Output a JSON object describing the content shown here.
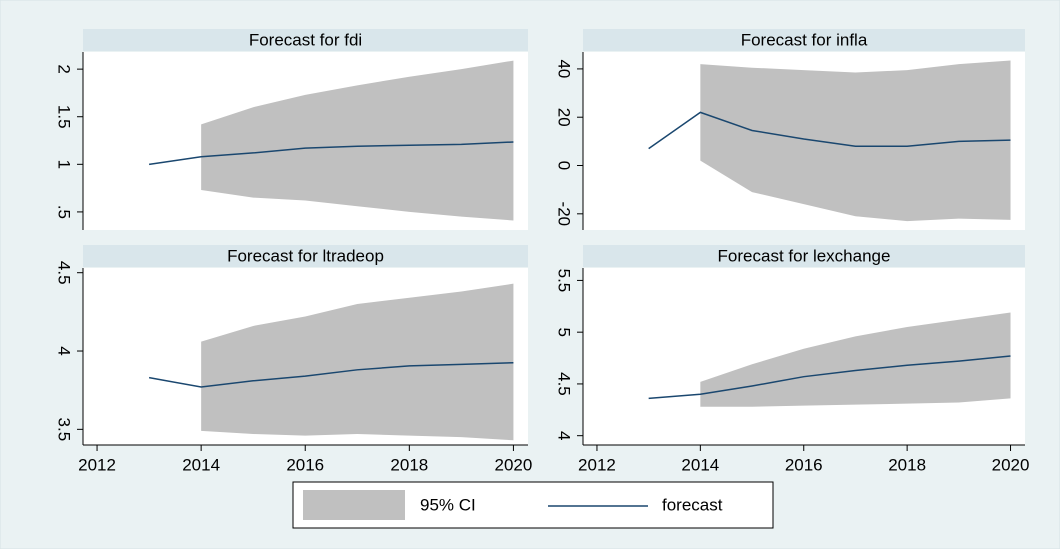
{
  "chart_data": [
    {
      "type": "line",
      "title": "Forecast for fdi",
      "x": [
        2013,
        2014,
        2015,
        2016,
        2017,
        2018,
        2019,
        2020
      ],
      "xlim": [
        2011.73,
        2020.28
      ],
      "ylim": [
        0.31,
        2.18
      ],
      "yticks": [
        {
          "value": 0.5,
          "label": ".5"
        },
        1,
        1.5,
        2
      ],
      "series": [
        {
          "name": "95% CI",
          "color": "#c0c0c0",
          "lower": [
            null,
            0.73,
            0.65,
            0.62,
            0.56,
            0.5,
            0.45,
            0.41
          ],
          "upper": [
            null,
            1.42,
            1.6,
            1.73,
            1.83,
            1.92,
            2.0,
            2.09
          ]
        },
        {
          "name": "forecast",
          "color": "#1a476f",
          "values": [
            1.0,
            1.08,
            1.12,
            1.17,
            1.19,
            1.2,
            1.21,
            1.235
          ]
        }
      ]
    },
    {
      "type": "line",
      "title": "Forecast for infla",
      "x": [
        2013,
        2014,
        2015,
        2016,
        2017,
        2018,
        2019,
        2020
      ],
      "xlim": [
        2011.73,
        2020.28
      ],
      "ylim": [
        -26.7,
        47
      ],
      "yticks": [
        -20,
        0,
        20,
        40
      ],
      "series": [
        {
          "color": "#c0c0c0",
          "lower": [
            null,
            2,
            -11,
            -16,
            -21,
            -23,
            -22,
            -22.5
          ],
          "upper": [
            null,
            42,
            40.5,
            39.5,
            38.5,
            39.5,
            42,
            43.5
          ]
        },
        {
          "color": "#1a476f",
          "values": [
            7,
            22,
            14.5,
            11,
            8,
            8,
            10,
            10.5
          ]
        }
      ]
    },
    {
      "type": "line",
      "title": "Forecast for ltradeop",
      "x": [
        2013,
        2014,
        2015,
        2016,
        2017,
        2018,
        2019,
        2020
      ],
      "xlim": [
        2011.73,
        2020.28
      ],
      "xticks": [
        2012,
        2014,
        2016,
        2018,
        2020
      ],
      "ylim": [
        3.4,
        4.53
      ],
      "yticks": [
        3.5,
        4,
        4.5
      ],
      "series": [
        {
          "color": "#c0c0c0",
          "lower": [
            null,
            3.49,
            3.47,
            3.46,
            3.47,
            3.46,
            3.45,
            3.43
          ],
          "upper": [
            null,
            4.06,
            4.16,
            4.22,
            4.3,
            4.34,
            4.38,
            4.43
          ]
        },
        {
          "color": "#1a476f",
          "values": [
            3.83,
            3.77,
            3.81,
            3.84,
            3.88,
            3.905,
            3.915,
            3.925
          ]
        }
      ]
    },
    {
      "type": "line",
      "title": "Forecast for lexchange",
      "x": [
        2013,
        2014,
        2015,
        2016,
        2017,
        2018,
        2019,
        2020
      ],
      "xlim": [
        2011.73,
        2020.28
      ],
      "xticks": [
        2012,
        2014,
        2016,
        2018,
        2020
      ],
      "ylim": [
        3.91,
        5.62
      ],
      "yticks": [
        4,
        4.5,
        5,
        5.5
      ],
      "series": [
        {
          "color": "#c0c0c0",
          "lower": [
            null,
            4.28,
            4.28,
            4.29,
            4.3,
            4.31,
            4.32,
            4.36
          ],
          "upper": [
            null,
            4.52,
            4.69,
            4.84,
            4.96,
            5.05,
            5.12,
            5.19
          ]
        },
        {
          "color": "#1a476f",
          "values": [
            4.36,
            4.4,
            4.48,
            4.57,
            4.63,
            4.68,
            4.72,
            4.77
          ]
        }
      ]
    }
  ]
}
